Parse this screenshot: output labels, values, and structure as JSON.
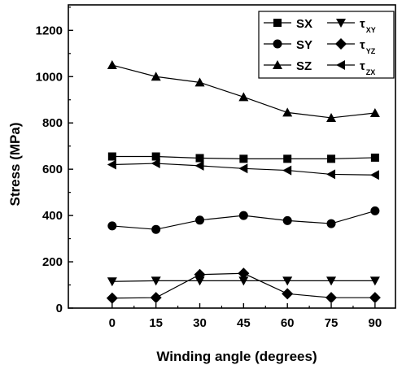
{
  "chart_data": {
    "type": "line",
    "title": "",
    "xlabel": "Winding angle (degrees)",
    "ylabel": "Stress (MPa)",
    "x": [
      0,
      15,
      30,
      45,
      60,
      75,
      90
    ],
    "xticks": [
      "0",
      "15",
      "30",
      "45",
      "60",
      "75",
      "90"
    ],
    "yticks": [
      "0",
      "200",
      "400",
      "600",
      "800",
      "1000",
      "1200"
    ],
    "xlim": [
      -15,
      97
    ],
    "ylim": [
      0,
      1310
    ],
    "grid": false,
    "legend_position": "top-right",
    "series": [
      {
        "name": "SX",
        "subscript": "",
        "marker": "square",
        "values": [
          655,
          655,
          648,
          645,
          645,
          645,
          650
        ]
      },
      {
        "name": "SY",
        "subscript": "",
        "marker": "circle",
        "values": [
          355,
          340,
          380,
          400,
          378,
          365,
          420
        ]
      },
      {
        "name": "SZ",
        "subscript": "",
        "marker": "triangle-up",
        "values": [
          1050,
          1000,
          975,
          912,
          845,
          822,
          843
        ]
      },
      {
        "name": "τ",
        "subscript": "XY",
        "marker": "triangle-down",
        "values": [
          115,
          118,
          118,
          118,
          118,
          118,
          118
        ]
      },
      {
        "name": "τ",
        "subscript": "YZ",
        "marker": "diamond",
        "values": [
          43,
          45,
          145,
          150,
          62,
          45,
          45
        ]
      },
      {
        "name": "τ",
        "subscript": "ZX",
        "marker": "triangle-left",
        "values": [
          620,
          625,
          615,
          603,
          595,
          578,
          575
        ]
      }
    ]
  }
}
